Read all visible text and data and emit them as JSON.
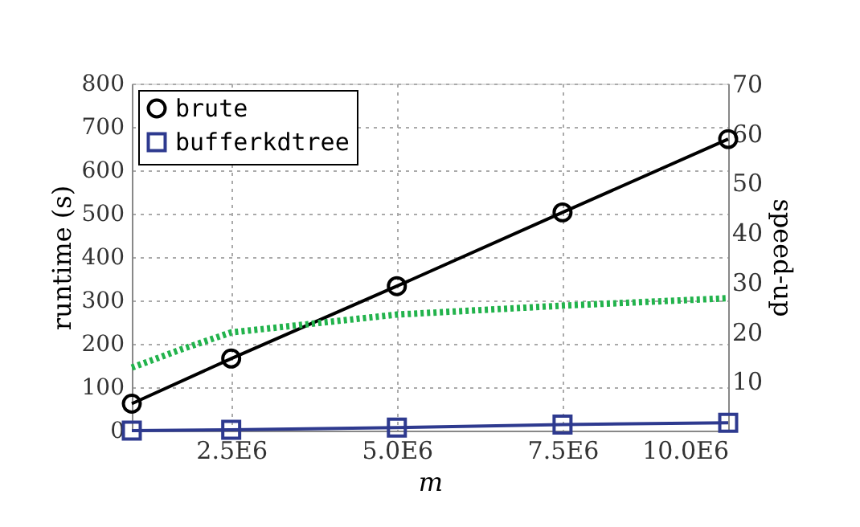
{
  "chart_data": {
    "type": "line",
    "xlabel": "m",
    "ylabel": "runtime (s)",
    "y2label": "speed-up",
    "x": [
      1000000,
      2500000,
      5000000,
      7500000,
      10000000
    ],
    "xlim": [
      1000000,
      10000000
    ],
    "xticks": [
      {
        "value": 2500000,
        "label": "2.5E6"
      },
      {
        "value": 5000000,
        "label": "5.0E6"
      },
      {
        "value": 7500000,
        "label": "7.5E6"
      },
      {
        "value": 10000000,
        "label": "10.0E6"
      }
    ],
    "ylim": [
      0,
      800
    ],
    "yticks": [
      0,
      100,
      200,
      300,
      400,
      500,
      600,
      700,
      800
    ],
    "y2lim": [
      0,
      70
    ],
    "y2ticks": [
      10,
      20,
      30,
      40,
      50,
      60,
      70
    ],
    "grid": true,
    "legend": "top left",
    "series": [
      {
        "name": "brute",
        "color": "#000000",
        "marker": "circle",
        "values": [
          62,
          166,
          333,
          503,
          672
        ]
      },
      {
        "name": "bufferkdtree",
        "color": "#2e3a8f",
        "marker": "square",
        "values": [
          0,
          2,
          7,
          14,
          18
        ]
      },
      {
        "color": "#22b34c",
        "axis": "y2",
        "marker": "none",
        "line_style": "dotted",
        "x": [
          1000000,
          1750000,
          2500000,
          5000000,
          7500000,
          10000000
        ],
        "values": [
          12.7,
          16.4,
          19.8,
          23.4,
          25.2,
          26.7
        ]
      }
    ]
  }
}
